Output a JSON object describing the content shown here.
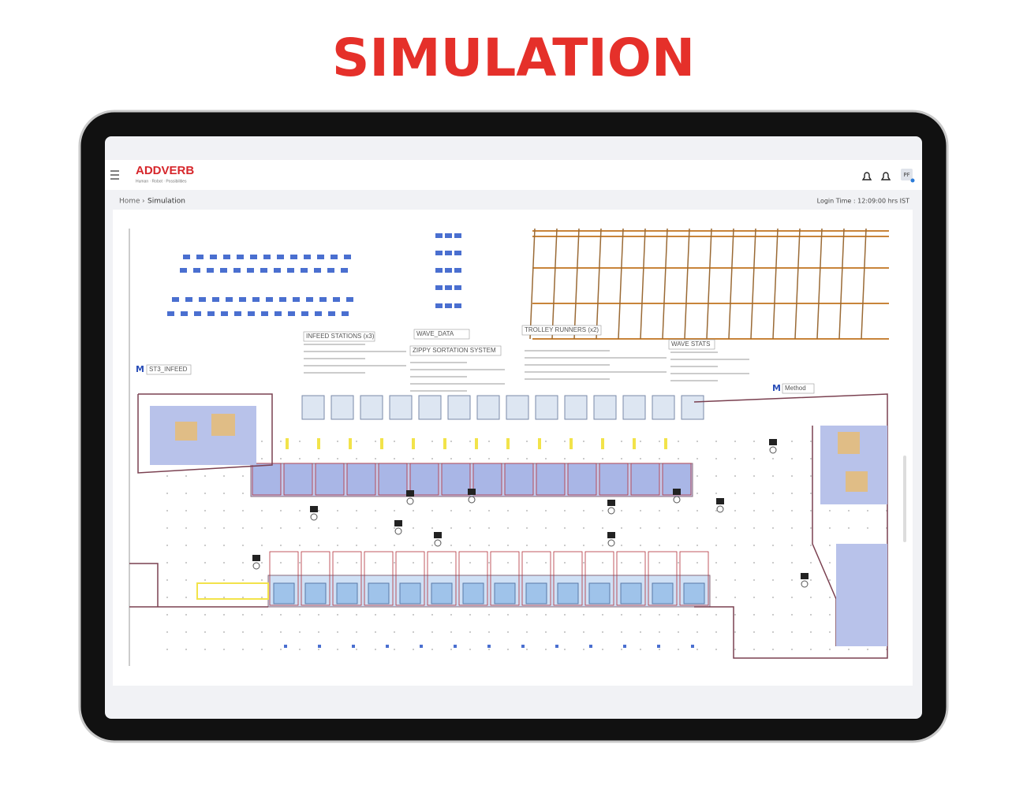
{
  "title": "SIMULATION",
  "header": {
    "logo": "ADDVERB",
    "tagline": "Human · Robot · Possibilities",
    "avatar": "PF"
  },
  "breadcrumb": {
    "home": "Home",
    "separator": "›",
    "current": "Simulation"
  },
  "login_time": "Login Time : 12:09:00 hrs IST",
  "simulation": {
    "marker": "M",
    "labels": [
      "INFEED STATIONS (x3)",
      "WAVE_DATA",
      "ZIPPY SORTATION SYSTEM",
      "TROLLEY RUNNERS (x2)",
      "WAVE STATS",
      "ST3_INFEED",
      "Method"
    ]
  }
}
